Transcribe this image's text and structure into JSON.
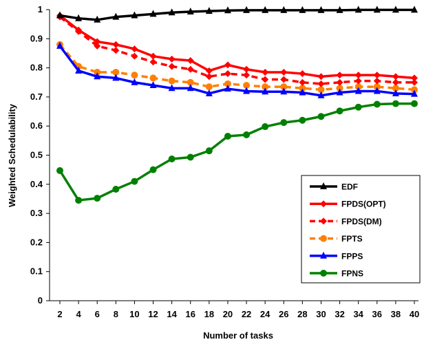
{
  "chart_data": {
    "type": "line",
    "xlabel": "Number of tasks",
    "ylabel": "Weighted Schedulability",
    "xlim": [
      2,
      40
    ],
    "ylim": [
      0,
      1
    ],
    "x_ticks": [
      "2",
      "4",
      "6",
      "8",
      "10",
      "12",
      "14",
      "16",
      "18",
      "20",
      "22",
      "24",
      "26",
      "28",
      "30",
      "32",
      "34",
      "36",
      "38",
      "40"
    ],
    "y_ticks": [
      "0",
      "0.1",
      "0.2",
      "0.3",
      "0.4",
      "0.5",
      "0.6",
      "0.7",
      "0.8",
      "0.9",
      "1"
    ],
    "grid": false,
    "legend_position": "bottom-right",
    "x": [
      2,
      4,
      6,
      8,
      10,
      12,
      14,
      16,
      18,
      20,
      22,
      24,
      26,
      28,
      30,
      32,
      34,
      36,
      38,
      40
    ],
    "series": [
      {
        "name": "EDF",
        "color": "#000000",
        "marker": "triangle",
        "dashed": false,
        "values": [
          0.98,
          0.97,
          0.965,
          0.975,
          0.98,
          0.985,
          0.99,
          0.993,
          0.995,
          0.997,
          0.998,
          0.998,
          0.998,
          0.998,
          0.998,
          0.998,
          0.999,
          0.999,
          0.999,
          0.999
        ]
      },
      {
        "name": "FPDS(OPT)",
        "color": "#ff0000",
        "marker": "diamond",
        "dashed": false,
        "values": [
          0.98,
          0.93,
          0.89,
          0.88,
          0.865,
          0.84,
          0.83,
          0.825,
          0.79,
          0.81,
          0.795,
          0.785,
          0.785,
          0.78,
          0.77,
          0.775,
          0.775,
          0.775,
          0.77,
          0.765
        ]
      },
      {
        "name": "FPDS(DM)",
        "color": "#ff0000",
        "marker": "diamond",
        "dashed": true,
        "values": [
          0.975,
          0.925,
          0.875,
          0.86,
          0.84,
          0.82,
          0.805,
          0.795,
          0.77,
          0.78,
          0.775,
          0.76,
          0.76,
          0.75,
          0.745,
          0.75,
          0.755,
          0.755,
          0.75,
          0.75
        ]
      },
      {
        "name": "FPTS",
        "color": "#ff8000",
        "marker": "circle",
        "dashed": true,
        "values": [
          0.88,
          0.805,
          0.785,
          0.785,
          0.775,
          0.765,
          0.755,
          0.75,
          0.735,
          0.745,
          0.74,
          0.735,
          0.735,
          0.73,
          0.725,
          0.73,
          0.735,
          0.735,
          0.73,
          0.725
        ]
      },
      {
        "name": "FPPS",
        "color": "#0000ff",
        "marker": "triangle",
        "dashed": false,
        "values": [
          0.875,
          0.79,
          0.77,
          0.765,
          0.75,
          0.74,
          0.73,
          0.73,
          0.712,
          0.728,
          0.72,
          0.718,
          0.718,
          0.715,
          0.705,
          0.715,
          0.72,
          0.72,
          0.712,
          0.71
        ]
      },
      {
        "name": "FPNS",
        "color": "#008000",
        "marker": "circle",
        "dashed": false,
        "values": [
          0.447,
          0.345,
          0.352,
          0.383,
          0.41,
          0.45,
          0.487,
          0.493,
          0.515,
          0.565,
          0.57,
          0.598,
          0.612,
          0.62,
          0.633,
          0.652,
          0.665,
          0.675,
          0.677,
          0.677
        ]
      }
    ]
  }
}
